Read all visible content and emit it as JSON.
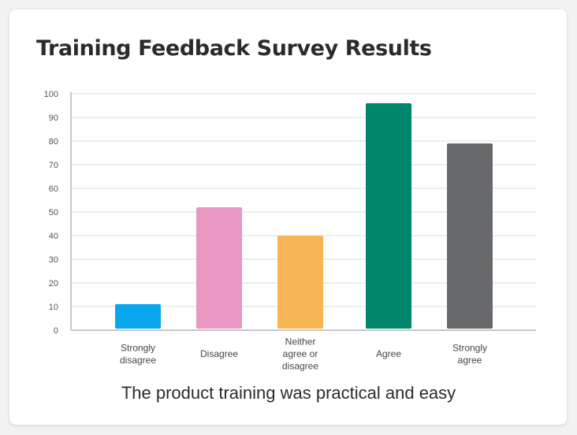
{
  "chart_data": {
    "type": "bar",
    "title": "Training Feedback Survey Results",
    "xlabel": "The product training was practical and easy",
    "ylabel": "",
    "ylim": [
      0,
      100
    ],
    "yticks": [
      "0",
      "10",
      "20",
      "30",
      "40",
      "50",
      "60",
      "70",
      "80",
      "90",
      "100"
    ],
    "categories": [
      [
        "Strongly",
        "disagree"
      ],
      [
        "Disagree"
      ],
      [
        "Neither",
        "agree or",
        "disagree"
      ],
      [
        "Agree"
      ],
      [
        "Strongly",
        "agree"
      ]
    ],
    "values": [
      11,
      52,
      40,
      96,
      79
    ],
    "colors": [
      "#0aa6ee",
      "#e898c2",
      "#f7b554",
      "#00866a",
      "#68696b"
    ],
    "grid": true,
    "legend": "none"
  }
}
